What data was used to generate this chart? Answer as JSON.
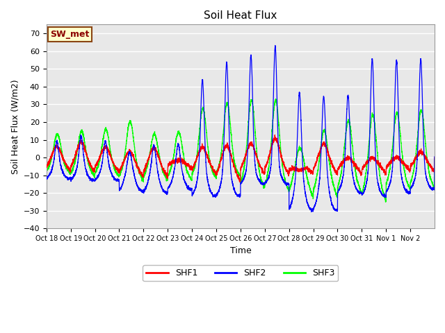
{
  "title": "Soil Heat Flux",
  "ylabel": "Soil Heat Flux (W/m2)",
  "xlabel": "Time",
  "ylim": [
    -40,
    75
  ],
  "yticks": [
    -40,
    -30,
    -20,
    -10,
    0,
    10,
    20,
    30,
    40,
    50,
    60,
    70
  ],
  "annotation_text": "SW_met",
  "annotation_bg": "#ffffcc",
  "annotation_border": "#8B4513",
  "annotation_text_color": "#8B0000",
  "fig_bg_color": "#ffffff",
  "plot_bg_color": "#e8e8e8",
  "grid_color": "#ffffff",
  "x_tick_labels": [
    "Oct 18",
    "Oct 19",
    "Oct 20",
    "Oct 21",
    "Oct 22",
    "Oct 23",
    "Oct 24",
    "Oct 25",
    "Oct 26",
    "Oct 27",
    "Oct 28",
    "Oct 29",
    "Oct 30",
    "Oct 31",
    "Nov 1",
    "Nov 2"
  ],
  "n_days": 16,
  "ppd": 288,
  "shf1_peaks": [
    8,
    11,
    8,
    6,
    8,
    0,
    8,
    10,
    10,
    13,
    -5,
    10,
    2,
    2,
    2,
    5
  ],
  "shf2_peaks": [
    11,
    14,
    11,
    6,
    10,
    10,
    47,
    57,
    60,
    65,
    41,
    39,
    38,
    59,
    58,
    58
  ],
  "shf3_peaks": [
    15,
    17,
    18,
    23,
    16,
    17,
    30,
    33,
    36,
    36,
    10,
    20,
    25,
    29,
    29,
    30
  ],
  "shf1_troughs": [
    -12,
    -13,
    -13,
    -18,
    -18,
    -10,
    -15,
    -22,
    -15,
    -15,
    -15,
    -15,
    -15,
    -15,
    -12,
    -12
  ],
  "shf2_troughs": [
    -12,
    -13,
    -13,
    -19,
    -20,
    -18,
    -22,
    -22,
    -15,
    -15,
    -30,
    -30,
    -20,
    -22,
    -20,
    -18
  ],
  "shf3_troughs": [
    -12,
    -14,
    -14,
    -17,
    -17,
    -17,
    -15,
    -14,
    -23,
    -25,
    -30,
    -30,
    -27,
    -33,
    -24,
    -23
  ]
}
